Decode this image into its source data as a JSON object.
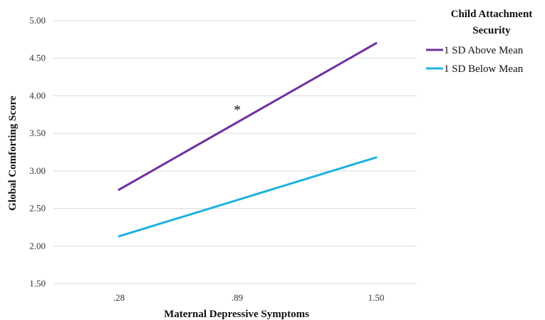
{
  "chart_data": {
    "type": "line",
    "title": "",
    "xlabel": "Maternal Depressive Symptoms",
    "ylabel": "Global Comforting Score",
    "categories": [
      ".28",
      ".89",
      "1.50"
    ],
    "x": [
      0.28,
      0.89,
      1.5
    ],
    "ylim": [
      1.5,
      5.0
    ],
    "yticks": [
      "1.50",
      "2.00",
      "2.50",
      "3.00",
      "3.50",
      "4.00",
      "4.50",
      "5.00"
    ],
    "grid": true,
    "legend": {
      "title_lines": [
        "Child Attachment",
        "Security"
      ],
      "position": "top-right"
    },
    "series": [
      {
        "name": "1 SD Above Mean",
        "color": "#7030a0",
        "x": [
          0.28,
          1.5
        ],
        "values": [
          2.75,
          4.7
        ]
      },
      {
        "name": "1 SD Below Mean",
        "color": "#1fb0e0",
        "x": [
          0.28,
          1.5
        ],
        "values": [
          2.13,
          3.18
        ]
      }
    ],
    "annotations": [
      {
        "text": "*",
        "x": 0.89,
        "y": 3.83
      }
    ]
  }
}
